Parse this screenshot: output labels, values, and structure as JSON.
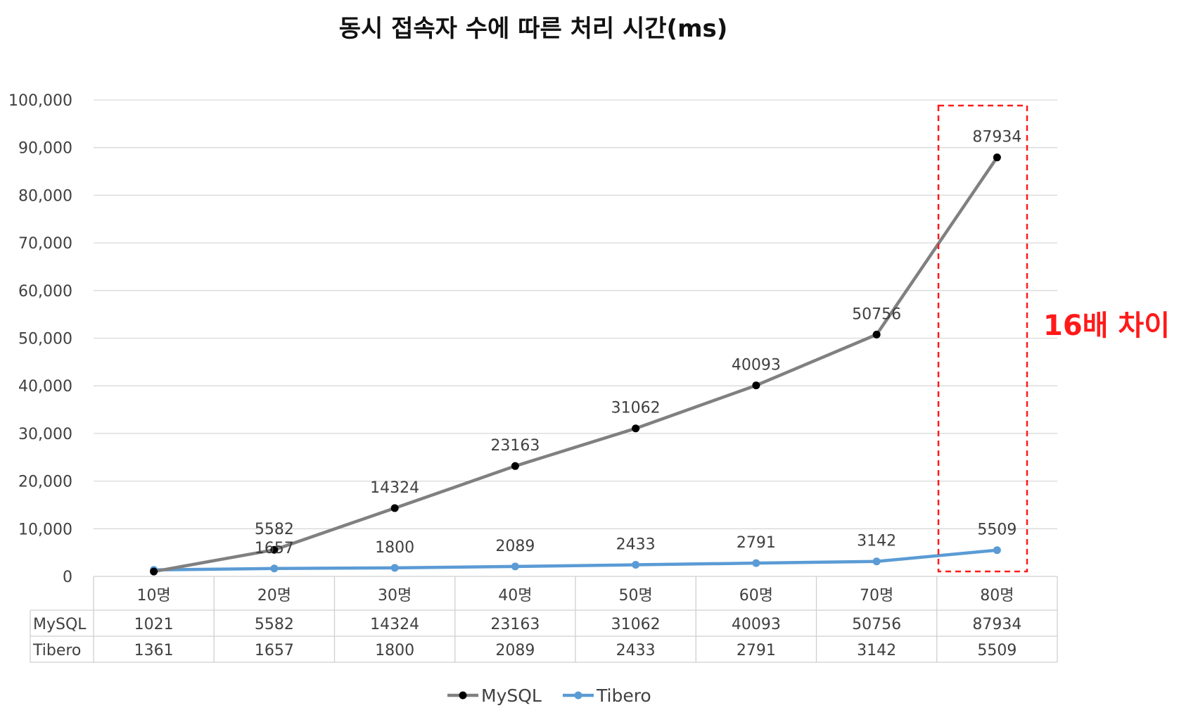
{
  "chart_data": {
    "type": "line",
    "title": "동시 접속자 수에 따른 처리 시간(ms)",
    "categories": [
      "10명",
      "20명",
      "30명",
      "40명",
      "50명",
      "60명",
      "70명",
      "80명"
    ],
    "series": [
      {
        "name": "MySQL",
        "color": "#808080",
        "marker_color": "#000000",
        "values": [
          1021,
          5582,
          14324,
          23163,
          31062,
          40093,
          50756,
          87934
        ]
      },
      {
        "name": "Tibero",
        "color": "#5b9bd5",
        "marker_color": "#5b9bd5",
        "values": [
          1361,
          1657,
          1800,
          2089,
          2433,
          2791,
          3142,
          5509
        ]
      }
    ],
    "ylim": [
      0,
      100000
    ],
    "ytick_step": 10000,
    "ytick_labels": [
      "0",
      "10,000",
      "20,000",
      "30,000",
      "40,000",
      "50,000",
      "60,000",
      "70,000",
      "80,000",
      "90,000",
      "100,000"
    ],
    "grid": true,
    "data_table": true,
    "legend": "bottom",
    "annotation": {
      "text": "16배 차이",
      "target_category": "80명",
      "color": "#ff1a1a"
    }
  }
}
